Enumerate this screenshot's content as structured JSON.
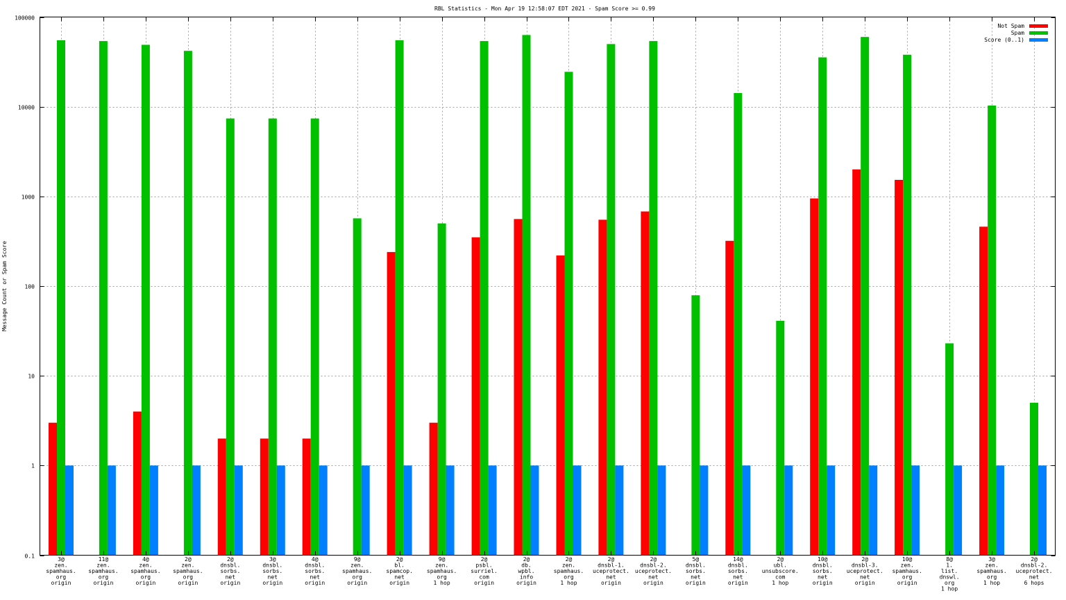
{
  "chart_data": {
    "type": "bar",
    "title": "RBL Statistics - Mon Apr 19 12:58:07 EDT 2021 - Spam Score >= 0.99",
    "ylabel": "Message Count or Spam Score",
    "xlabel": "",
    "yscale": "log",
    "ylim": [
      0.1,
      100000
    ],
    "yticks": [
      {
        "value": 0.1,
        "label": "0.1"
      },
      {
        "value": 1,
        "label": "1"
      },
      {
        "value": 10,
        "label": "10"
      },
      {
        "value": 100,
        "label": "100"
      },
      {
        "value": 1000,
        "label": "1000"
      },
      {
        "value": 10000,
        "label": "10000"
      },
      {
        "value": 100000,
        "label": "100000"
      }
    ],
    "grid": true,
    "legend": "top-right",
    "categories": [
      [
        "3@",
        "zen.",
        "spamhaus.",
        "org",
        "origin"
      ],
      [
        "11@",
        "zen.",
        "spamhaus.",
        "org",
        "origin"
      ],
      [
        "4@",
        "zen.",
        "spamhaus.",
        "org",
        "origin"
      ],
      [
        "2@",
        "zen.",
        "spamhaus.",
        "org",
        "origin"
      ],
      [
        "2@",
        "dnsbl.",
        "sorbs.",
        "net",
        "origin"
      ],
      [
        "3@",
        "dnsbl.",
        "sorbs.",
        "net",
        "origin"
      ],
      [
        "4@",
        "dnsbl.",
        "sorbs.",
        "net",
        "origin"
      ],
      [
        "9@",
        "zen.",
        "spamhaus.",
        "org",
        "origin"
      ],
      [
        "2@",
        "bl.",
        "spamcop.",
        "net",
        "origin"
      ],
      [
        "9@",
        "zen.",
        "spamhaus.",
        "org",
        "1 hop"
      ],
      [
        "2@",
        "psbl.",
        "surriel.",
        "com",
        "origin"
      ],
      [
        "2@",
        "db.",
        "wpbl.",
        "info",
        "origin"
      ],
      [
        "2@",
        "zen.",
        "spamhaus.",
        "org",
        "1 hop"
      ],
      [
        "2@",
        "dnsbl-1.",
        "uceprotect.",
        "net",
        "origin"
      ],
      [
        "2@",
        "dnsbl-2.",
        "uceprotect.",
        "net",
        "origin"
      ],
      [
        "5@",
        "dnsbl.",
        "sorbs.",
        "net",
        "origin"
      ],
      [
        "14@",
        "dnsbl.",
        "sorbs.",
        "net",
        "origin"
      ],
      [
        "2@",
        "ubl.",
        "unsubscore.",
        "com",
        "1 hop"
      ],
      [
        "10@",
        "dnsbl.",
        "sorbs.",
        "net",
        "origin"
      ],
      [
        "2@",
        "dnsbl-3.",
        "uceprotect.",
        "net",
        "origin"
      ],
      [
        "10@",
        "zen.",
        "spamhaus.",
        "org",
        "origin"
      ],
      [
        "8@",
        "1.",
        "list.",
        "dnswl.",
        "org",
        "1 hop"
      ],
      [
        "3@",
        "zen.",
        "spamhaus.",
        "org",
        "1 hop"
      ],
      [
        "2@",
        "dnsbl-2.",
        "uceprotect.",
        "net",
        "6 hops"
      ]
    ],
    "series": [
      {
        "name": "Not Spam",
        "color": "#ff0000",
        "values": [
          3,
          null,
          4,
          null,
          2,
          2,
          2,
          null,
          240,
          3,
          350,
          560,
          220,
          550,
          680,
          null,
          320,
          null,
          950,
          2000,
          1530,
          null,
          460,
          null
        ]
      },
      {
        "name": "Spam",
        "color": "#00c000",
        "values": [
          55000,
          54000,
          49000,
          42000,
          7400,
          7400,
          7400,
          570,
          55000,
          500,
          54000,
          63000,
          24500,
          50000,
          54000,
          79,
          14200,
          41,
          35500,
          60000,
          38000,
          23,
          10300,
          5
        ]
      },
      {
        "name": "Score (0..1)",
        "color": "#0080ff",
        "values": [
          1,
          1,
          1,
          1,
          1,
          1,
          1,
          1,
          1,
          1,
          1,
          1,
          1,
          1,
          1,
          1,
          1,
          1,
          1,
          1,
          1,
          1,
          1,
          1
        ]
      }
    ]
  }
}
